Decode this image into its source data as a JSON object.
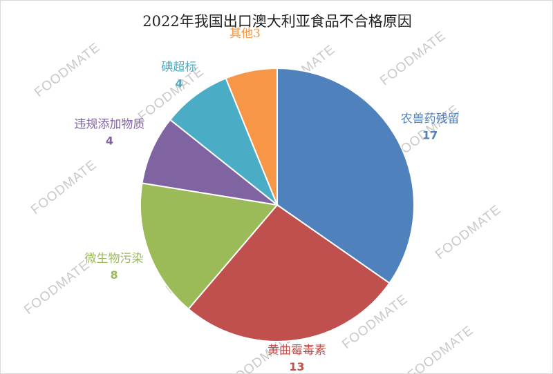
{
  "chart_data": {
    "type": "pie",
    "title": "2022年我国出口澳大利亚食品不合格原因",
    "categories": [
      "农兽药残留",
      "黄曲霉毒素",
      "微生物污染",
      "违规添加物质",
      "碘超标",
      "其他"
    ],
    "values": [
      17,
      13,
      8,
      4,
      4,
      3
    ],
    "colors": [
      "#4f81bd",
      "#c0504d",
      "#9bbb59",
      "#8064a2",
      "#4bacc6",
      "#f79646"
    ],
    "legend": "none",
    "data_labels": "category-and-value"
  },
  "watermark": {
    "text": "FOODMATE"
  }
}
